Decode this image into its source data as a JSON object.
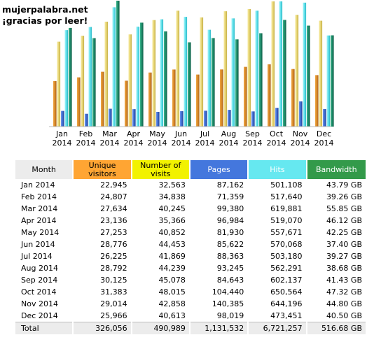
{
  "site": {
    "name": "mujerpalabra.net",
    "tagline": "¡gracias por leer!"
  },
  "colors": {
    "visitors": "#d88a2a",
    "visits": "#e6d576",
    "pages": "#3f6ccf",
    "hits": "#5fe0ea",
    "bandwidth": "#1e8a6a"
  },
  "chart_data": {
    "type": "bar",
    "categories": [
      "Jan 2014",
      "Feb 2014",
      "Mar 2014",
      "Apr 2014",
      "May 2014",
      "Jun 2014",
      "Jul 2014",
      "Aug 2014",
      "Sep 2014",
      "Oct 2014",
      "Nov 2014",
      "Dec 2014"
    ],
    "category_lines": [
      [
        "Jan",
        "2014"
      ],
      [
        "Feb",
        "2014"
      ],
      [
        "Mar",
        "2014"
      ],
      [
        "Apr",
        "2014"
      ],
      [
        "May",
        "2014"
      ],
      [
        "Jun",
        "2014"
      ],
      [
        "Jul",
        "2014"
      ],
      [
        "Aug",
        "2014"
      ],
      [
        "Sep",
        "2014"
      ],
      [
        "Oct",
        "2014"
      ],
      [
        "Nov",
        "2014"
      ],
      [
        "Dec",
        "2014"
      ]
    ],
    "series": [
      {
        "key": "visitors",
        "values": [
          22945,
          24807,
          27634,
          23136,
          27253,
          28776,
          26225,
          28792,
          30125,
          31383,
          29014,
          25966
        ]
      },
      {
        "key": "visits",
        "values": [
          32563,
          34838,
          40245,
          35366,
          40852,
          44453,
          41869,
          44239,
          45078,
          48015,
          42858,
          40613
        ]
      },
      {
        "key": "pages",
        "values": [
          87162,
          71359,
          99380,
          96984,
          81930,
          85622,
          88363,
          93245,
          84643,
          104440,
          140385,
          98019
        ]
      },
      {
        "key": "hits",
        "values": [
          501108,
          517640,
          619881,
          519070,
          557671,
          570068,
          503180,
          562291,
          602137,
          650564,
          644196,
          473451
        ]
      },
      {
        "key": "bandwidth",
        "values": [
          43.79,
          39.26,
          55.85,
          46.12,
          42.25,
          37.4,
          39.27,
          38.68,
          41.43,
          47.32,
          44.8,
          40.5
        ]
      }
    ]
  },
  "table": {
    "headers": {
      "month": "Month",
      "visitors": "Unique visitors",
      "visits": "Number of visits",
      "pages": "Pages",
      "hits": "Hits",
      "bandwidth": "Bandwidth"
    },
    "rows": [
      {
        "month": "Jan 2014",
        "visitors": "22,945",
        "visits": "32,563",
        "pages": "87,162",
        "hits": "501,108",
        "bandwidth": "43.79 GB"
      },
      {
        "month": "Feb 2014",
        "visitors": "24,807",
        "visits": "34,838",
        "pages": "71,359",
        "hits": "517,640",
        "bandwidth": "39.26 GB"
      },
      {
        "month": "Mar 2014",
        "visitors": "27,634",
        "visits": "40,245",
        "pages": "99,380",
        "hits": "619,881",
        "bandwidth": "55.85 GB"
      },
      {
        "month": "Apr 2014",
        "visitors": "23,136",
        "visits": "35,366",
        "pages": "96,984",
        "hits": "519,070",
        "bandwidth": "46.12 GB"
      },
      {
        "month": "May 2014",
        "visitors": "27,253",
        "visits": "40,852",
        "pages": "81,930",
        "hits": "557,671",
        "bandwidth": "42.25 GB"
      },
      {
        "month": "Jun 2014",
        "visitors": "28,776",
        "visits": "44,453",
        "pages": "85,622",
        "hits": "570,068",
        "bandwidth": "37.40 GB"
      },
      {
        "month": "Jul 2014",
        "visitors": "26,225",
        "visits": "41,869",
        "pages": "88,363",
        "hits": "503,180",
        "bandwidth": "39.27 GB"
      },
      {
        "month": "Aug 2014",
        "visitors": "28,792",
        "visits": "44,239",
        "pages": "93,245",
        "hits": "562,291",
        "bandwidth": "38.68 GB"
      },
      {
        "month": "Sep 2014",
        "visitors": "30,125",
        "visits": "45,078",
        "pages": "84,643",
        "hits": "602,137",
        "bandwidth": "41.43 GB"
      },
      {
        "month": "Oct 2014",
        "visitors": "31,383",
        "visits": "48,015",
        "pages": "104,440",
        "hits": "650,564",
        "bandwidth": "47.32 GB"
      },
      {
        "month": "Nov 2014",
        "visitors": "29,014",
        "visits": "42,858",
        "pages": "140,385",
        "hits": "644,196",
        "bandwidth": "44.80 GB"
      },
      {
        "month": "Dec 2014",
        "visitors": "25,966",
        "visits": "40,613",
        "pages": "98,019",
        "hits": "473,451",
        "bandwidth": "40.50 GB"
      }
    ],
    "total": {
      "month": "Total",
      "visitors": "326,056",
      "visits": "490,989",
      "pages": "1,131,532",
      "hits": "6,721,257",
      "bandwidth": "516.68 GB"
    }
  }
}
